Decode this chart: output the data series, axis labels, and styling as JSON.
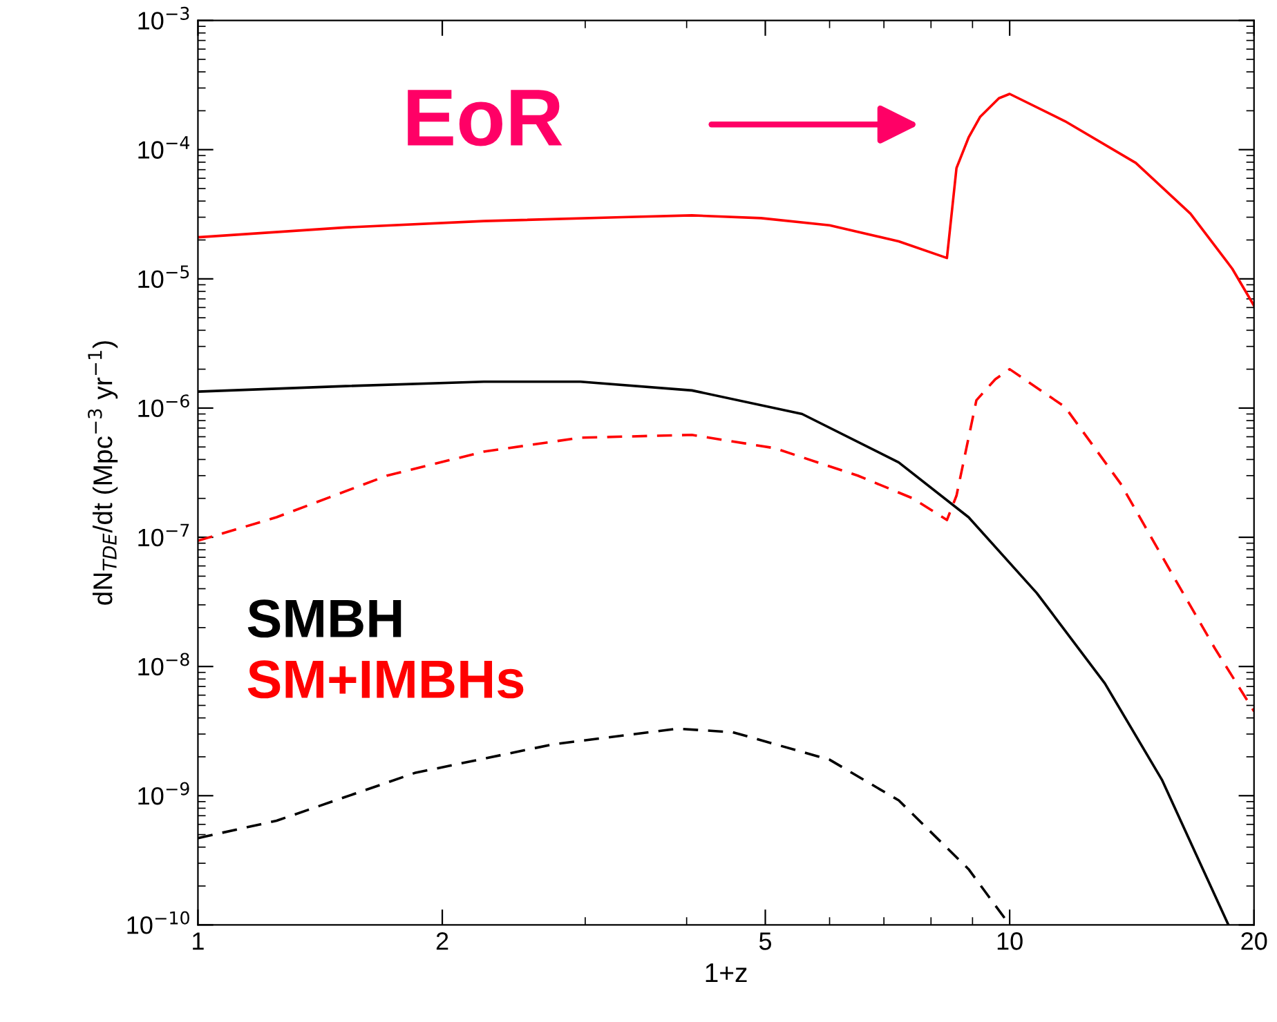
{
  "chart_data": {
    "type": "line",
    "xlabel": "1+z",
    "ylabel": "dN$_{TDE}$/dt (Mpc$^{−3}$ yr$^{−1}$)",
    "log": "xy",
    "xlim": [
      1,
      20
    ],
    "ylim": [
      1e-10,
      0.001
    ],
    "xticks": [
      1,
      2,
      5,
      10,
      20
    ],
    "yticks": [
      {
        "value": 1e-10,
        "label": "10$^{−10}$"
      },
      {
        "value": 1e-09,
        "label": "10$^{−9}$"
      },
      {
        "value": 1e-08,
        "label": "10$^{−8}$"
      },
      {
        "value": 1e-07,
        "label": "10$^{−7}$"
      },
      {
        "value": 1e-06,
        "label": "10$^{−6}$"
      },
      {
        "value": 1e-05,
        "label": "10$^{−5}$"
      },
      {
        "value": 0.0001,
        "label": "10$^{−4}$"
      },
      {
        "value": 0.001,
        "label": "10$^{−3}$"
      }
    ],
    "grid": false,
    "legend": "left",
    "marker": "none",
    "annotations": [
      "EoR"
    ],
    "series": [
      {
        "name": "SM+IMBHs",
        "color": "#ff0000",
        "line_style": "solid",
        "x": [
          1,
          1.52,
          2.25,
          3.33,
          4.06,
          4.94,
          6.0,
          7.3,
          8.37,
          8.6,
          8.9,
          9.2,
          9.7,
          10,
          11.7,
          14.3,
          16.7,
          18.8,
          20
        ],
        "values": [
          2.1e-05,
          2.5e-05,
          2.8e-05,
          3e-05,
          3.1e-05,
          2.95e-05,
          2.6e-05,
          1.95e-05,
          1.45e-05,
          7.2e-05,
          0.000124,
          0.00018,
          0.00025,
          0.00027,
          0.000166,
          7.9e-05,
          3.2e-05,
          1.2e-05,
          6.2e-06
        ]
      },
      {
        "name": "SMBH",
        "color": "#000000",
        "line_style": "solid",
        "x": [
          1,
          1.52,
          2.25,
          2.96,
          4.06,
          5.55,
          7.3,
          8.9,
          10.8,
          13.1,
          15.4,
          17.3,
          18.6
        ],
        "values": [
          1.34e-06,
          1.48e-06,
          1.6e-06,
          1.6e-06,
          1.37e-06,
          9e-07,
          3.8e-07,
          1.43e-07,
          3.7e-08,
          7.4e-09,
          1.33e-09,
          2.7e-10,
          1e-10
        ]
      },
      {
        "color": "#ff0000",
        "line_style": "dashed",
        "x": [
          1,
          1.25,
          1.71,
          2.25,
          2.96,
          4.06,
          5.13,
          6.5,
          7.6,
          8.37,
          8.6,
          9.1,
          9.6,
          10,
          11.7,
          13.7,
          16.0,
          17.9,
          20
        ],
        "values": [
          9.4e-08,
          1.43e-07,
          3e-07,
          4.6e-07,
          5.9e-07,
          6.2e-07,
          4.9e-07,
          3e-07,
          2e-07,
          1.36e-07,
          2.1e-07,
          1.15e-06,
          1.67e-06,
          2e-06,
          1.02e-06,
          2.6e-07,
          4.7e-08,
          1.38e-08,
          4.5e-09
        ]
      },
      {
        "color": "#000000",
        "line_style": "dashed",
        "x": [
          1,
          1.25,
          1.85,
          2.74,
          3.9,
          4.56,
          6.0,
          7.3,
          8.9,
          10
        ],
        "values": [
          4.7e-10,
          6.4e-10,
          1.5e-09,
          2.5e-09,
          3.3e-09,
          3.1e-09,
          1.9e-09,
          9.2e-10,
          2.7e-10,
          1e-10
        ]
      }
    ]
  }
}
